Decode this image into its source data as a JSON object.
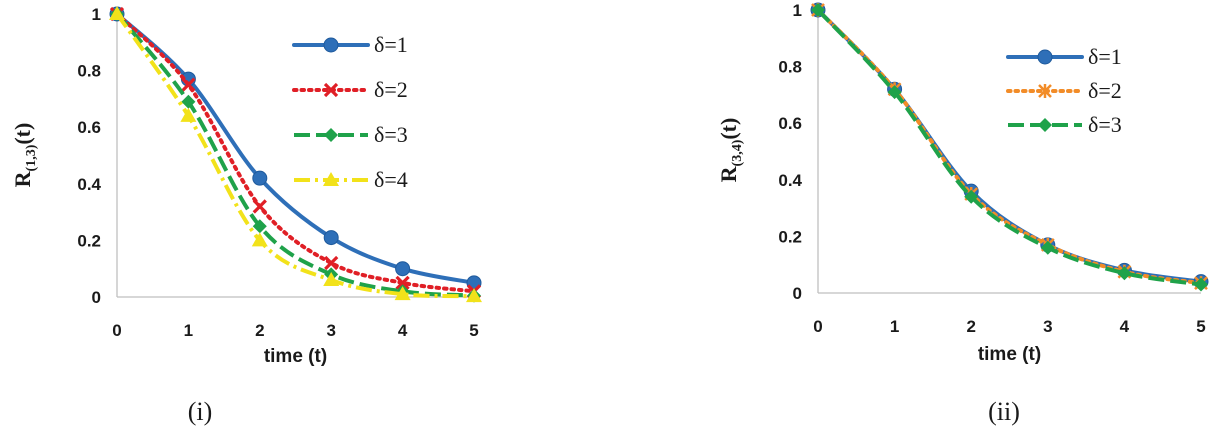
{
  "colors": {
    "delta1": "#2e6fb8",
    "delta2": "#e01f26",
    "delta3": "#1fa24a",
    "delta4": "#f2e21a",
    "axis": "#bfbfbf",
    "text": "#1a1a1a"
  },
  "chart_data": [
    {
      "type": "line",
      "caption": "(i)",
      "xlabel": "time (t)",
      "ylabel": {
        "main": "R",
        "sub": "(1,3)",
        "suffix": "(t)"
      },
      "xlim": [
        0,
        5
      ],
      "ylim": [
        0,
        1
      ],
      "x": [
        0,
        1,
        2,
        3,
        4,
        5
      ],
      "xticks": [
        "0",
        "1",
        "2",
        "3",
        "4",
        "5"
      ],
      "yticks": [
        "0",
        "0.2",
        "0.4",
        "0.6",
        "0.8",
        "1"
      ],
      "grid": false,
      "legend_position": "top-right",
      "series": [
        {
          "name": "δ=1",
          "values": [
            1,
            0.77,
            0.42,
            0.21,
            0.1,
            0.05
          ],
          "line": "solid",
          "marker": "circle",
          "color_key": "delta1"
        },
        {
          "name": "δ=2",
          "values": [
            1,
            0.75,
            0.32,
            0.12,
            0.05,
            0.02
          ],
          "line": "dotted",
          "marker": "x",
          "color_key": "delta2"
        },
        {
          "name": "δ=3",
          "values": [
            1,
            0.69,
            0.25,
            0.08,
            0.02,
            0.005
          ],
          "line": "dashed",
          "marker": "diamond",
          "color_key": "delta3"
        },
        {
          "name": "δ=4",
          "values": [
            1,
            0.64,
            0.2,
            0.06,
            0.01,
            0.003
          ],
          "line": "dashdot",
          "marker": "triangle",
          "color_key": "delta4"
        }
      ]
    },
    {
      "type": "line",
      "caption": "(ii)",
      "xlabel": "time (t)",
      "ylabel": {
        "main": "R",
        "sub": "(3,4)",
        "suffix": "(t)"
      },
      "xlim": [
        0,
        5
      ],
      "ylim": [
        0,
        1
      ],
      "x": [
        0,
        1,
        2,
        3,
        4,
        5
      ],
      "xticks": [
        "0",
        "1",
        "2",
        "3",
        "4",
        "5"
      ],
      "yticks": [
        "0",
        "0.2",
        "0.4",
        "0.6",
        "0.8",
        "1"
      ],
      "grid": false,
      "legend_position": "top-right",
      "series": [
        {
          "name": "δ=1",
          "values": [
            1,
            0.72,
            0.36,
            0.17,
            0.08,
            0.04
          ],
          "line": "solid",
          "marker": "circle",
          "color_key": "delta1"
        },
        {
          "name": "δ=2",
          "values": [
            1,
            0.72,
            0.35,
            0.17,
            0.075,
            0.035
          ],
          "line": "dotted",
          "marker": "asterisk",
          "color_key": "delta4alt"
        },
        {
          "name": "δ=3",
          "values": [
            1,
            0.71,
            0.34,
            0.16,
            0.07,
            0.03
          ],
          "line": "dashed",
          "marker": "diamond",
          "color_key": "delta3"
        }
      ]
    }
  ]
}
